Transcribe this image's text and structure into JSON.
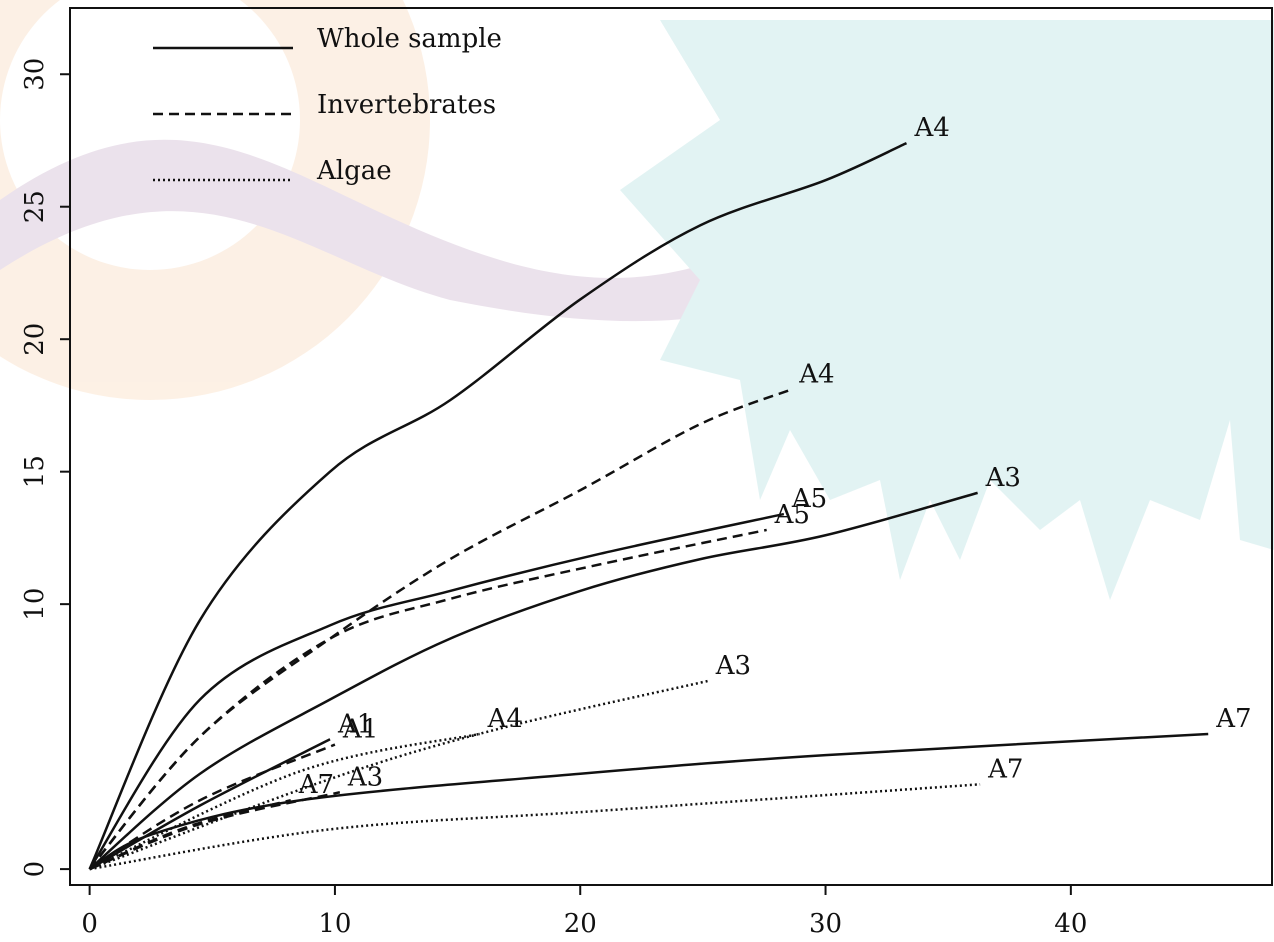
{
  "chart_data": {
    "type": "line",
    "xlim": [
      -0.8,
      48.2
    ],
    "xticks": [
      0,
      10,
      20,
      30,
      40
    ],
    "ylim": [
      -0.6,
      32.5
    ],
    "yticks": [
      0,
      10,
      15,
      20,
      25,
      30
    ],
    "color": "#111111",
    "legend": "upper left",
    "groups": [
      {
        "name": "Whole sample",
        "line_style": "solid",
        "curves": [
          {
            "label": "A4",
            "x": [
              0,
              4.5,
              9.8,
              14.7,
              20,
              24.9,
              30,
              33.3
            ],
            "values": [
              0,
              9.4,
              15.0,
              17.7,
              21.5,
              24.3,
              26.0,
              27.4
            ]
          },
          {
            "label": "A5",
            "x": [
              0,
              4.5,
              9.8,
              14.7,
              20.8,
              28.3
            ],
            "values": [
              0,
              6.4,
              9.2,
              10.5,
              11.9,
              13.4
            ]
          },
          {
            "label": "A3",
            "x": [
              0,
              4.5,
              9.8,
              14.7,
              20,
              24.9,
              30,
              36.2
            ],
            "values": [
              0,
              3.6,
              6.4,
              8.7,
              10.5,
              11.7,
              12.6,
              14.2
            ]
          },
          {
            "label": "A1",
            "x": [
              0,
              4.5,
              9.8
            ],
            "values": [
              0,
              2.4,
              4.9
            ]
          },
          {
            "label": "A7",
            "x": [
              0,
              2.5,
              8.6,
              20,
              30,
              45.6
            ],
            "values": [
              0,
              1.3,
              2.6,
              3.6,
              4.3,
              5.1
            ]
          }
        ]
      },
      {
        "name": "Invertebrates",
        "line_style": "dashed",
        "curves": [
          {
            "label": "A4",
            "x": [
              0,
              4.5,
              9.8,
              14.7,
              20,
              24.9,
              28.6
            ],
            "values": [
              0,
              5.0,
              8.7,
              11.7,
              14.3,
              16.8,
              18.1
            ]
          },
          {
            "label": "A5",
            "x": [
              0,
              4.5,
              9.8,
              14.7,
              20.8,
              27.6
            ],
            "values": [
              0,
              5.0,
              8.7,
              10.2,
              11.5,
              12.8
            ]
          },
          {
            "label": "A1",
            "x": [
              0,
              4.5,
              10.0
            ],
            "values": [
              0,
              2.6,
              4.7
            ]
          },
          {
            "label": "A3",
            "x": [
              0,
              4.5,
              10.2
            ],
            "values": [
              0,
              1.7,
              2.9
            ]
          },
          {
            "label": "A7",
            "x": [
              0,
              4.0,
              8.2
            ],
            "values": [
              0,
              1.6,
              2.6
            ]
          }
        ]
      },
      {
        "name": "Algae",
        "line_style": "dotted",
        "curves": [
          {
            "label": "A3",
            "x": [
              0,
              9.8,
              16.7,
              25.2
            ],
            "values": [
              0,
              3.4,
              5.3,
              7.1
            ]
          },
          {
            "label": "A4",
            "x": [
              0,
              8.6,
              15.9
            ],
            "values": [
              0,
              3.7,
              5.1
            ]
          },
          {
            "label": "A7",
            "x": [
              0,
              9.8,
              20.8,
              36.3
            ],
            "values": [
              0,
              1.5,
              2.2,
              3.2
            ]
          }
        ]
      }
    ]
  }
}
